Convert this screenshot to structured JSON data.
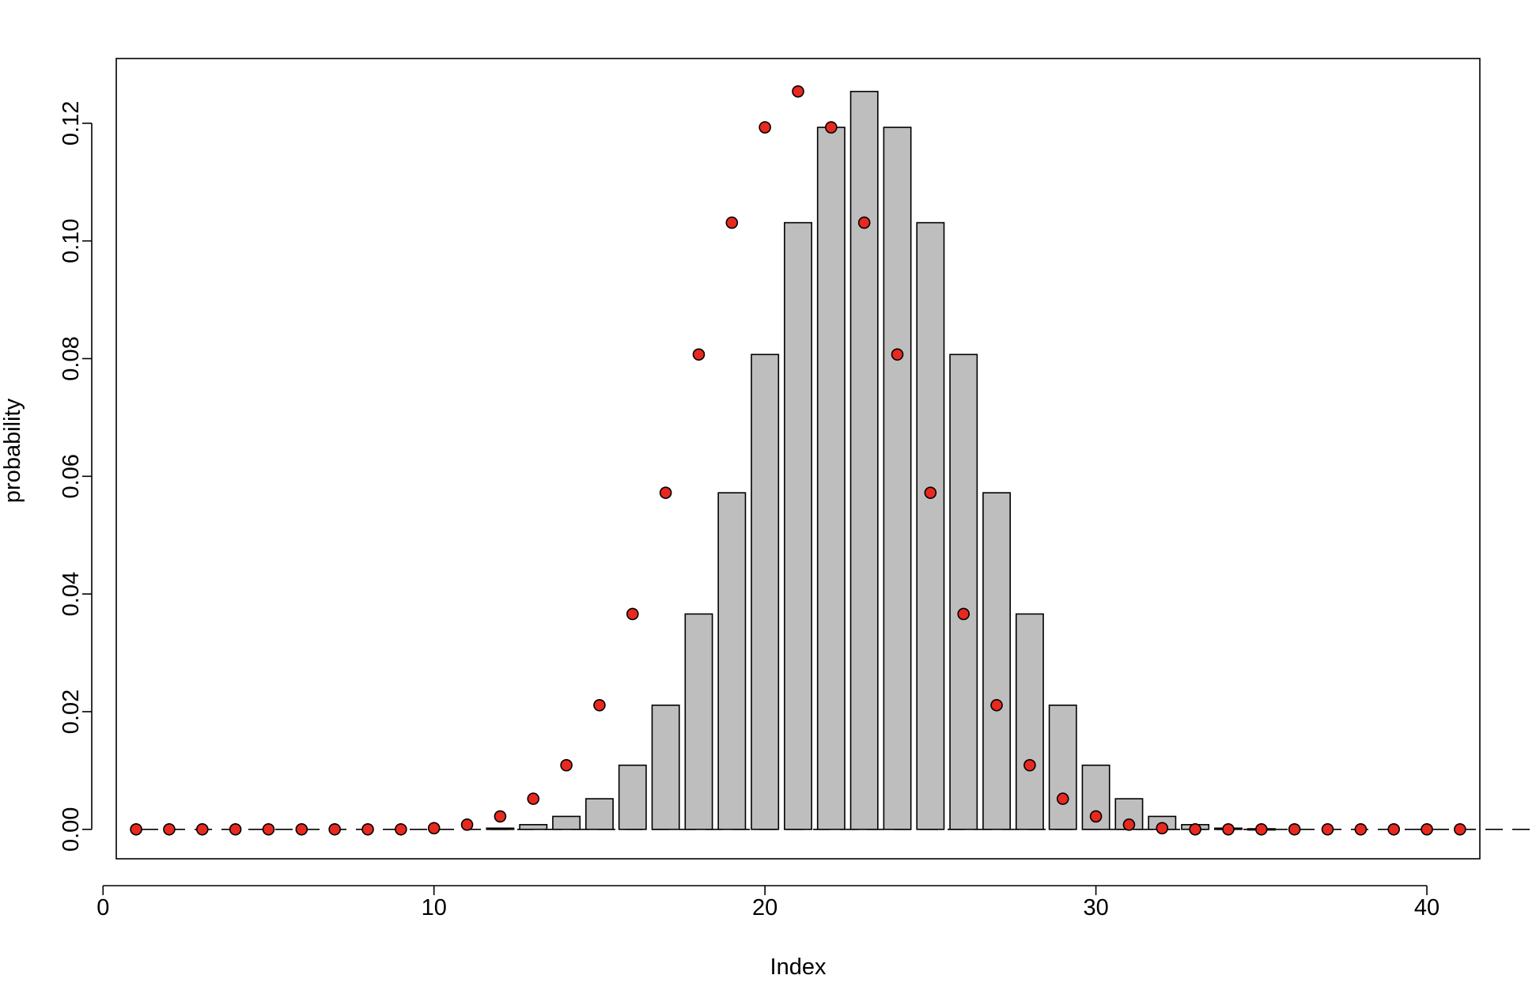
{
  "chart_data": {
    "type": "bar",
    "title": "",
    "xlabel": "Index",
    "ylabel": "probability",
    "xlim": [
      0.4,
      41.6
    ],
    "ylim": [
      -0.005,
      0.131
    ],
    "x_ticks": [
      0,
      10,
      20,
      30,
      40
    ],
    "x_tick_labels": [
      "0",
      "10",
      "20",
      "30",
      "40"
    ],
    "y_ticks": [
      0.0,
      0.02,
      0.04,
      0.06,
      0.08,
      0.1,
      0.12
    ],
    "y_tick_labels": [
      "0.00",
      "0.02",
      "0.04",
      "0.06",
      "0.08",
      "0.10",
      "0.12"
    ],
    "grid": false,
    "legend": "none",
    "reference_line": {
      "y": 0,
      "style": "dashed"
    },
    "bar_color": "#bebebe",
    "point_color": "#e8291f",
    "series": [
      {
        "type": "bar",
        "x": [
          1,
          2,
          3,
          4,
          5,
          6,
          7,
          8,
          9,
          10,
          11,
          12,
          13,
          14,
          15,
          16,
          17,
          18,
          19,
          20,
          21,
          22,
          23,
          24,
          25,
          26,
          27,
          28,
          29,
          30,
          31,
          32,
          33,
          34,
          35,
          36,
          37,
          38,
          39,
          40,
          41
        ],
        "values": [
          0,
          0,
          0,
          0,
          0,
          0,
          0,
          0,
          0,
          0,
          0,
          0.0002,
          0.0008,
          0.0022,
          0.0052,
          0.0109,
          0.0211,
          0.0366,
          0.0572,
          0.0807,
          0.1031,
          0.1193,
          0.1254,
          0.1193,
          0.1031,
          0.0807,
          0.0572,
          0.0366,
          0.0211,
          0.0109,
          0.0052,
          0.0022,
          0.0008,
          0.0002,
          0.0001,
          0,
          0,
          0,
          0,
          0,
          0
        ]
      },
      {
        "type": "scatter",
        "x": [
          1,
          2,
          3,
          4,
          5,
          6,
          7,
          8,
          9,
          10,
          11,
          12,
          13,
          14,
          15,
          16,
          17,
          18,
          19,
          20,
          21,
          22,
          23,
          24,
          25,
          26,
          27,
          28,
          29,
          30,
          31,
          32,
          33,
          34,
          35,
          36,
          37,
          38,
          39,
          40,
          41
        ],
        "values": [
          0,
          0,
          0,
          0,
          0,
          0,
          0,
          0,
          0,
          0.0002,
          0.0008,
          0.0022,
          0.0052,
          0.0109,
          0.0211,
          0.0366,
          0.0572,
          0.0807,
          0.1031,
          0.1193,
          0.1254,
          0.1193,
          0.1031,
          0.0807,
          0.0572,
          0.0366,
          0.0211,
          0.0109,
          0.0052,
          0.0022,
          0.0008,
          0.0002,
          0,
          0,
          0,
          0,
          0,
          0,
          0,
          0,
          0
        ]
      }
    ]
  }
}
